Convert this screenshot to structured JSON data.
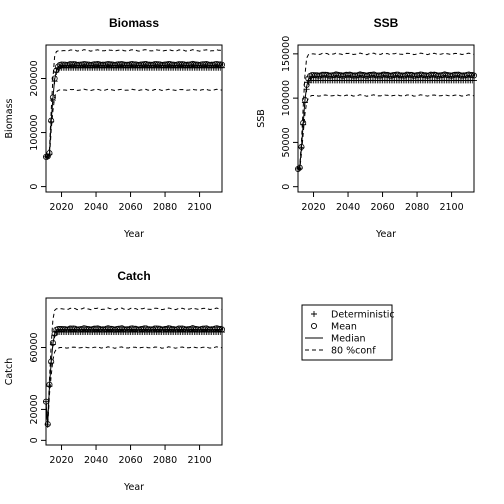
{
  "chart_data": [
    {
      "type": "line",
      "title": "Biomass",
      "xlabel": "Year",
      "ylabel": "Biomass",
      "xlim": [
        2011,
        2113
      ],
      "ylim": [
        -10000,
        262000
      ],
      "xticks": [
        2020,
        2040,
        2060,
        2080,
        2100
      ],
      "yticks": [
        0,
        100000,
        200000
      ],
      "years": [
        2011,
        2113
      ],
      "series": [
        {
          "name": "Deterministic",
          "style": "plus",
          "ramp": [
            [
              2011,
              55000
            ],
            [
              2012,
              55000
            ],
            [
              2013,
              60000
            ],
            [
              2014,
              120000
            ],
            [
              2015,
              160000
            ],
            [
              2016,
              195000
            ],
            [
              2017,
              212000
            ],
            [
              2018,
              218000
            ],
            [
              2019,
              220000
            ],
            [
              2020,
              220000
            ]
          ],
          "plateau": 220000,
          "wobble": 0
        },
        {
          "name": "Mean",
          "style": "circle",
          "ramp": [
            [
              2011,
              55000
            ],
            [
              2012,
              56000
            ],
            [
              2013,
              62000
            ],
            [
              2014,
              122000
            ],
            [
              2015,
              165000
            ],
            [
              2016,
              200000
            ],
            [
              2017,
              215000
            ],
            [
              2018,
              222000
            ],
            [
              2019,
              225000
            ],
            [
              2020,
              226000
            ]
          ],
          "plateau": 226000,
          "wobble": 1000
        },
        {
          "name": "Median",
          "style": "solid",
          "ramp": [
            [
              2011,
              55000
            ],
            [
              2012,
              56000
            ],
            [
              2013,
              61000
            ],
            [
              2014,
              121000
            ],
            [
              2015,
              163000
            ],
            [
              2016,
              198000
            ],
            [
              2017,
              214000
            ],
            [
              2018,
              221000
            ],
            [
              2019,
              224000
            ],
            [
              2020,
              225000
            ]
          ],
          "plateau": 225000,
          "wobble": 800
        },
        {
          "name": "80 %conf upper",
          "style": "dashed",
          "ramp": [
            [
              2011,
              55000
            ],
            [
              2012,
              58000
            ],
            [
              2013,
              70000
            ],
            [
              2014,
              140000
            ],
            [
              2015,
              200000
            ],
            [
              2016,
              240000
            ],
            [
              2017,
              250000
            ],
            [
              2018,
              251000
            ],
            [
              2019,
              251000
            ],
            [
              2020,
              251000
            ]
          ],
          "plateau": 252000,
          "wobble": 1500
        },
        {
          "name": "80 %conf lower",
          "style": "dashed",
          "ramp": [
            [
              2011,
              55000
            ],
            [
              2012,
              53000
            ],
            [
              2013,
              55000
            ],
            [
              2014,
              105000
            ],
            [
              2015,
              140000
            ],
            [
              2016,
              165000
            ],
            [
              2017,
              175000
            ],
            [
              2018,
              178000
            ],
            [
              2019,
              179000
            ],
            [
              2020,
              179000
            ]
          ],
          "plateau": 179000,
          "wobble": 1200
        }
      ]
    },
    {
      "type": "line",
      "title": "SSB",
      "xlabel": "Year",
      "ylabel": "SSB",
      "xlim": [
        2011,
        2113
      ],
      "ylim": [
        -6000,
        160000
      ],
      "xticks": [
        2020,
        2040,
        2060,
        2080,
        2100
      ],
      "yticks": [
        0,
        50000,
        100000,
        150000
      ],
      "years": [
        2011,
        2113
      ],
      "series": [
        {
          "name": "Deterministic",
          "style": "plus",
          "ramp": [
            [
              2011,
              20000
            ],
            [
              2012,
              21000
            ],
            [
              2013,
              44000
            ],
            [
              2014,
              70000
            ],
            [
              2015,
              95000
            ],
            [
              2016,
              110000
            ],
            [
              2017,
              118000
            ],
            [
              2018,
              120000
            ],
            [
              2019,
              120000
            ],
            [
              2020,
              120000
            ]
          ],
          "plateau": 120000,
          "wobble": 0
        },
        {
          "name": "Mean",
          "style": "circle",
          "ramp": [
            [
              2011,
              20000
            ],
            [
              2012,
              21500
            ],
            [
              2013,
              45000
            ],
            [
              2014,
              72000
            ],
            [
              2015,
              98000
            ],
            [
              2016,
              115000
            ],
            [
              2017,
              122000
            ],
            [
              2018,
              125000
            ],
            [
              2019,
              126000
            ],
            [
              2020,
              126000
            ]
          ],
          "plateau": 126000,
          "wobble": 800
        },
        {
          "name": "Median",
          "style": "solid",
          "ramp": [
            [
              2011,
              20000
            ],
            [
              2012,
              21200
            ],
            [
              2013,
              44500
            ],
            [
              2014,
              71000
            ],
            [
              2015,
              97000
            ],
            [
              2016,
              113000
            ],
            [
              2017,
              121000
            ],
            [
              2018,
              124000
            ],
            [
              2019,
              125000
            ],
            [
              2020,
              125000
            ]
          ],
          "plateau": 125000,
          "wobble": 600
        },
        {
          "name": "80 %conf upper",
          "style": "dashed",
          "ramp": [
            [
              2011,
              20000
            ],
            [
              2012,
              23000
            ],
            [
              2013,
              52000
            ],
            [
              2014,
              90000
            ],
            [
              2015,
              125000
            ],
            [
              2016,
              145000
            ],
            [
              2017,
              149000
            ],
            [
              2018,
              150000
            ],
            [
              2019,
              150000
            ],
            [
              2020,
              150000
            ]
          ],
          "plateau": 150000,
          "wobble": 1000
        },
        {
          "name": "80 %conf lower",
          "style": "dashed",
          "ramp": [
            [
              2011,
              20000
            ],
            [
              2012,
              19000
            ],
            [
              2013,
              38000
            ],
            [
              2014,
              60000
            ],
            [
              2015,
              82000
            ],
            [
              2016,
              95000
            ],
            [
              2017,
              100000
            ],
            [
              2018,
              102000
            ],
            [
              2019,
              103000
            ],
            [
              2020,
              103000
            ]
          ],
          "plateau": 103000,
          "wobble": 900
        }
      ]
    },
    {
      "type": "line",
      "title": "Catch",
      "xlabel": "Year",
      "ylabel": "Catch",
      "xlim": [
        2011,
        2113
      ],
      "ylim": [
        -3000,
        92000
      ],
      "xticks": [
        2020,
        2040,
        2060,
        2080,
        2100
      ],
      "yticks": [
        0,
        20000,
        60000
      ],
      "years": [
        2011,
        2113
      ],
      "series": [
        {
          "name": "Deterministic",
          "style": "plus",
          "ramp": [
            [
              2011,
              25000
            ],
            [
              2012,
              10000
            ],
            [
              2013,
              35000
            ],
            [
              2014,
              50000
            ],
            [
              2015,
              62000
            ],
            [
              2016,
              68000
            ],
            [
              2017,
              70000
            ],
            [
              2018,
              70000
            ],
            [
              2019,
              70000
            ],
            [
              2020,
              70000
            ]
          ],
          "plateau": 70000,
          "wobble": 0
        },
        {
          "name": "Mean",
          "style": "circle",
          "ramp": [
            [
              2011,
              25000
            ],
            [
              2012,
              10500
            ],
            [
              2013,
              36000
            ],
            [
              2014,
              51000
            ],
            [
              2015,
              63000
            ],
            [
              2016,
              69000
            ],
            [
              2017,
              71500
            ],
            [
              2018,
              72000
            ],
            [
              2019,
              72000
            ],
            [
              2020,
              72000
            ]
          ],
          "plateau": 72000,
          "wobble": 500
        },
        {
          "name": "Median",
          "style": "solid",
          "ramp": [
            [
              2011,
              25000
            ],
            [
              2012,
              10300
            ],
            [
              2013,
              35500
            ],
            [
              2014,
              50500
            ],
            [
              2015,
              62500
            ],
            [
              2016,
              68500
            ],
            [
              2017,
              71000
            ],
            [
              2018,
              71500
            ],
            [
              2019,
              71500
            ],
            [
              2020,
              71500
            ]
          ],
          "plateau": 71500,
          "wobble": 400
        },
        {
          "name": "80 %conf upper",
          "style": "dashed",
          "ramp": [
            [
              2011,
              25000
            ],
            [
              2012,
              11500
            ],
            [
              2013,
              40000
            ],
            [
              2014,
              62000
            ],
            [
              2015,
              78000
            ],
            [
              2016,
              84000
            ],
            [
              2017,
              85000
            ],
            [
              2018,
              85000
            ],
            [
              2019,
              85000
            ],
            [
              2020,
              85000
            ]
          ],
          "plateau": 85000,
          "wobble": 600
        },
        {
          "name": "80 %conf lower",
          "style": "dashed",
          "ramp": [
            [
              2011,
              25000
            ],
            [
              2012,
              9000
            ],
            [
              2013,
              30000
            ],
            [
              2014,
              42000
            ],
            [
              2015,
              52000
            ],
            [
              2016,
              57000
            ],
            [
              2017,
              59000
            ],
            [
              2018,
              59500
            ],
            [
              2019,
              60000
            ],
            [
              2020,
              60000
            ]
          ],
          "plateau": 60000,
          "wobble": 500
        }
      ]
    }
  ],
  "legend": {
    "placement": "right-middle",
    "entries": [
      {
        "label": "Deterministic",
        "style": "plus"
      },
      {
        "label": "Mean",
        "style": "circle"
      },
      {
        "label": "Median",
        "style": "solid"
      },
      {
        "label": "80 %conf",
        "style": "dashed"
      }
    ]
  },
  "colors": {
    "ink": "#000000",
    "background": "#ffffff"
  }
}
